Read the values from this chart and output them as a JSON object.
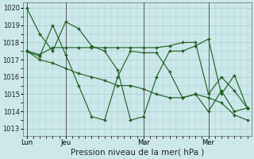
{
  "bg_color": "#cce8ea",
  "grid_color": "#aacfd2",
  "line_color": "#1a5c1a",
  "xlabel": "Pression niveau de la mer( hPa )",
  "xlabel_fontsize": 7.5,
  "ylim": [
    1012.6,
    1020.3
  ],
  "yticks": [
    1013,
    1014,
    1015,
    1016,
    1017,
    1018,
    1019,
    1020
  ],
  "xtick_labels": [
    "Lun",
    "Jeu",
    "Mar",
    "Mer"
  ],
  "xtick_positions": [
    0,
    3,
    9,
    14
  ],
  "vline_positions": [
    0,
    3,
    9,
    14
  ],
  "xlim": [
    -0.3,
    17.3
  ],
  "series1": [
    1020,
    1018.5,
    1017.5,
    1019.2,
    1018.8,
    1017.8,
    1017.5,
    1016.4,
    1013.5,
    1013.7,
    1016.0,
    1017.5,
    1017.5,
    1017.8,
    1018.2,
    1015.0,
    1016.1,
    1014.2
  ],
  "series2": [
    1017.5,
    1017.2,
    1019.0,
    1017.3,
    1015.5,
    1013.7,
    1013.5,
    1016.0,
    1017.5,
    1017.4,
    1017.4,
    1016.3,
    1014.8,
    1015.0,
    1014.0,
    1015.2,
    1014.0,
    1014.2
  ],
  "series3": [
    1017.5,
    1017.3,
    1017.7,
    1017.7,
    1017.7,
    1017.7,
    1017.7,
    1017.7,
    1017.7,
    1017.7,
    1017.7,
    1017.8,
    1018.0,
    1018.0,
    1015.0,
    1016.0,
    1015.2,
    1014.2
  ],
  "series4": [
    1017.5,
    1017.0,
    1016.8,
    1016.5,
    1016.2,
    1016.0,
    1015.8,
    1015.5,
    1015.5,
    1015.3,
    1015.0,
    1014.8,
    1014.8,
    1015.0,
    1014.8,
    1014.5,
    1013.8,
    1013.5
  ],
  "n_points": 18
}
